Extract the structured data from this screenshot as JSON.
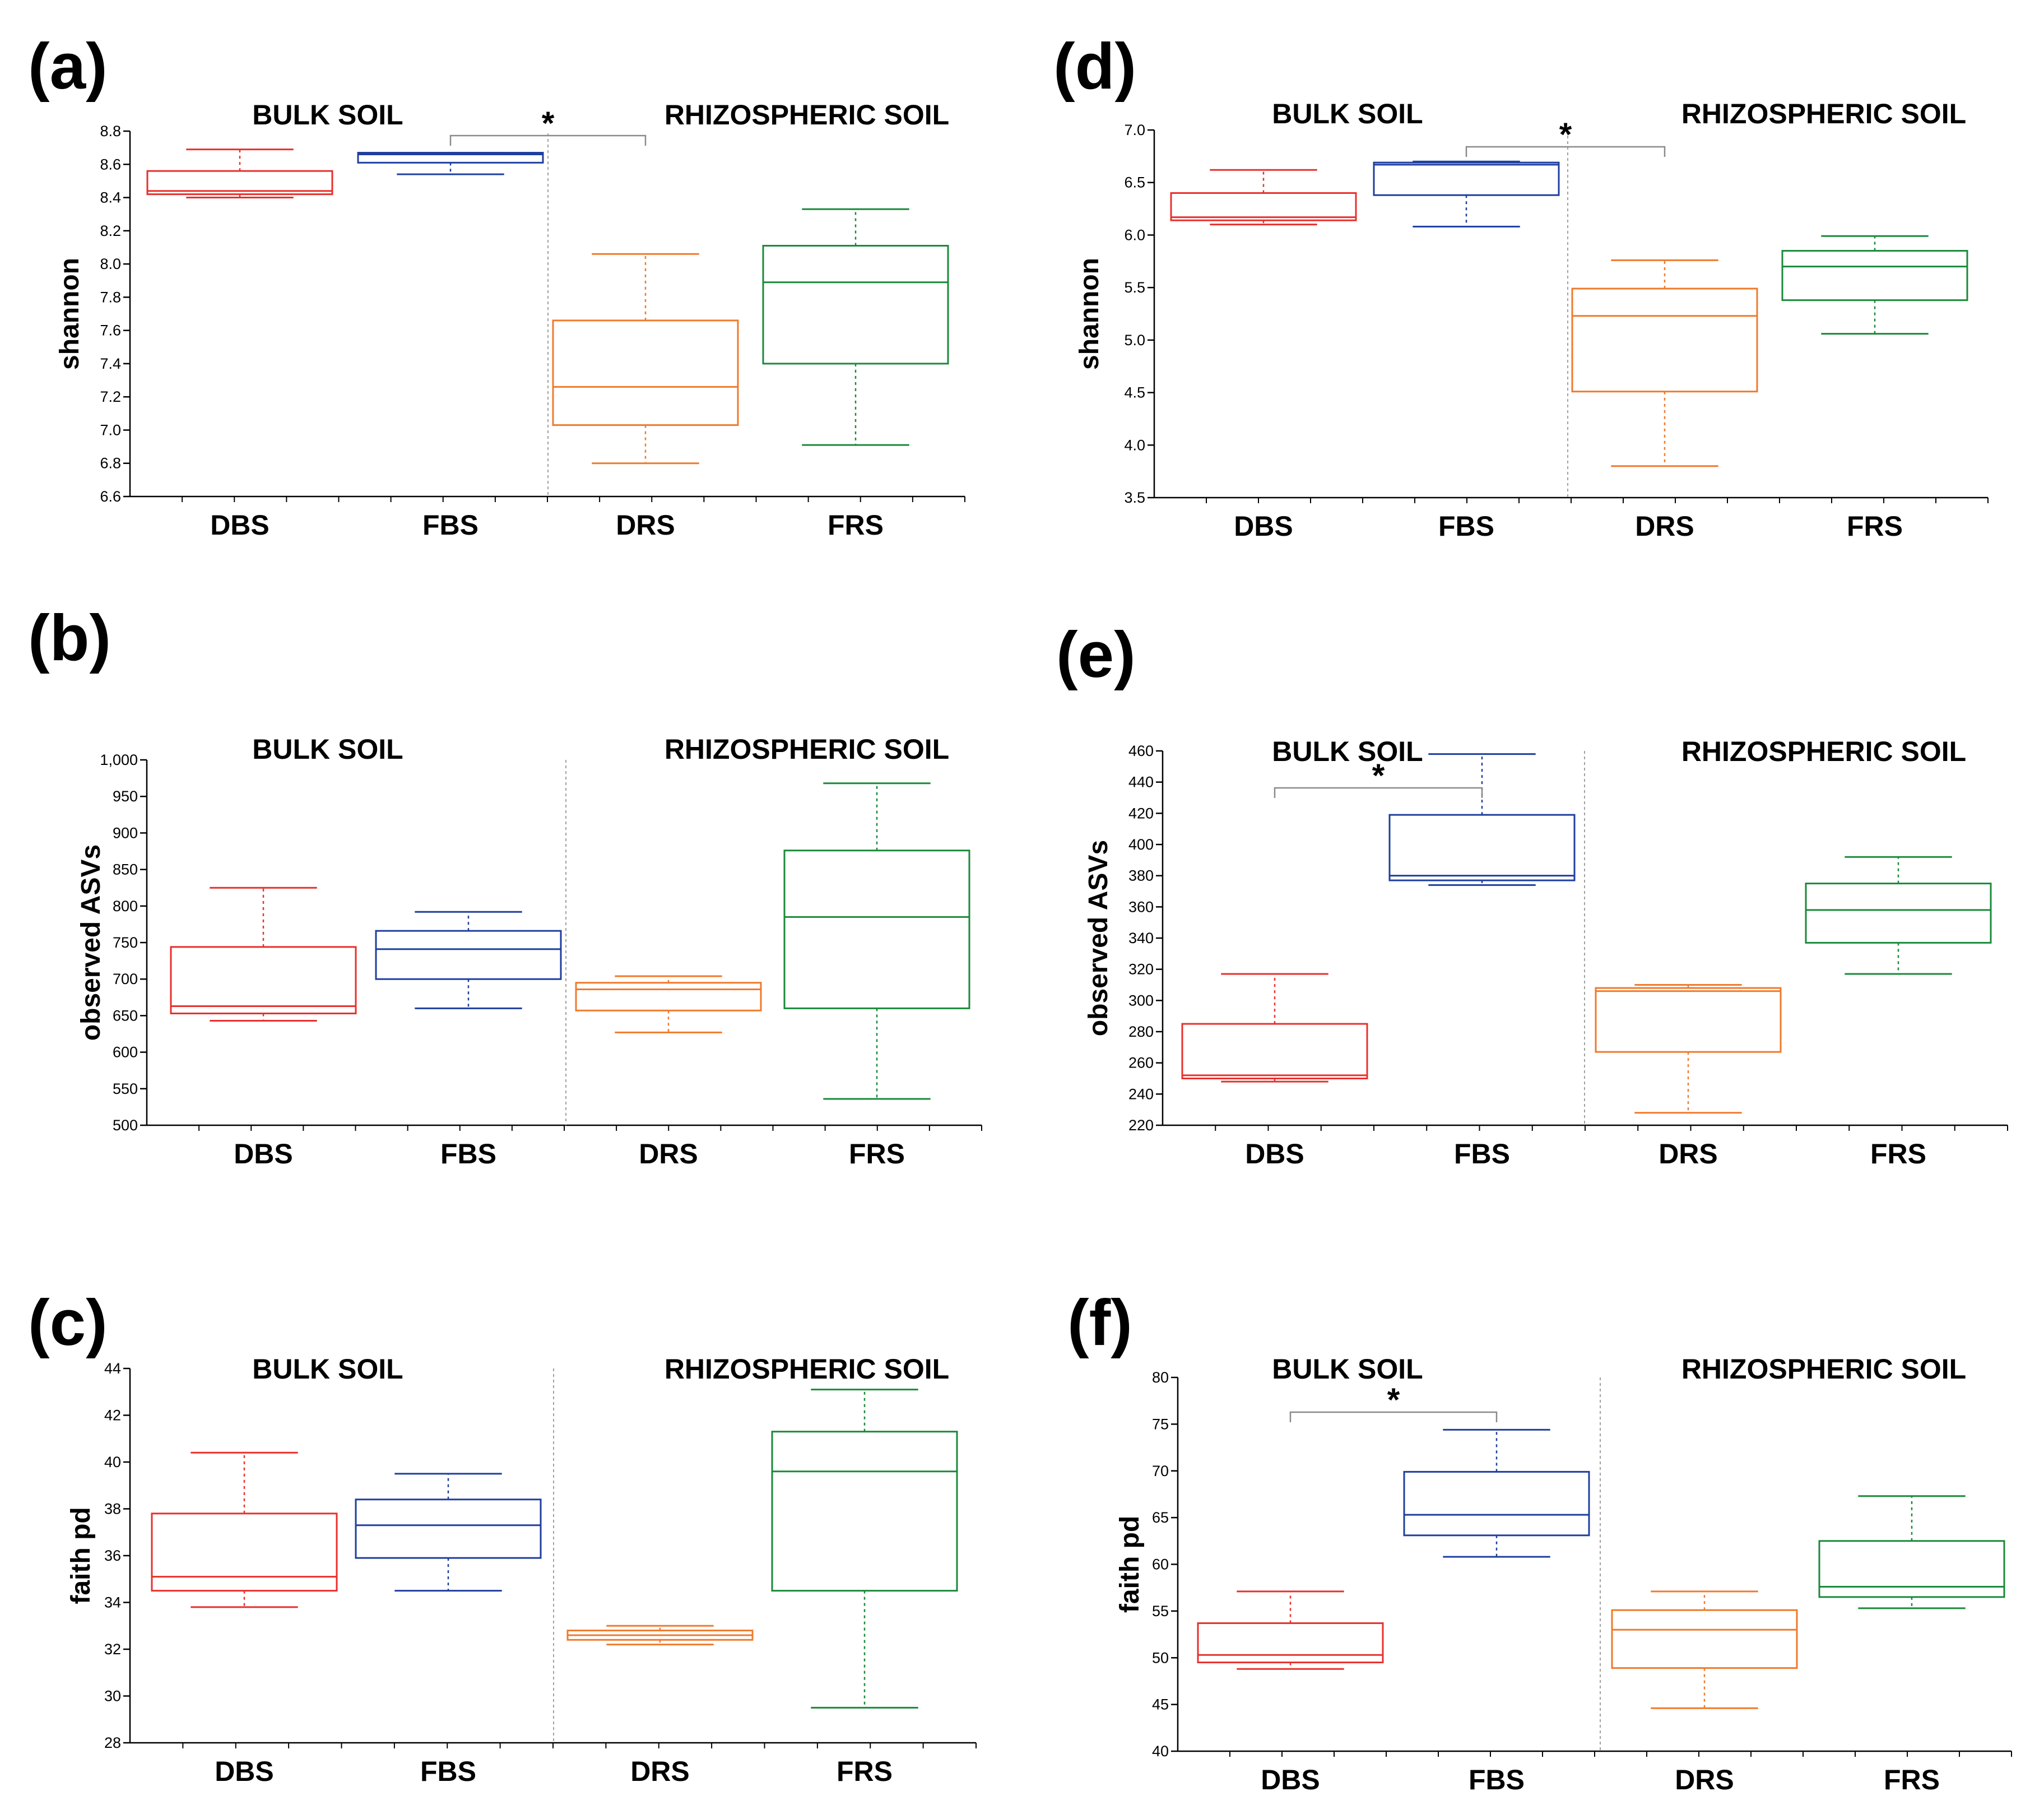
{
  "colors": {
    "DBS": "#e8302c",
    "FBS": "#1f3f9f",
    "DRS": "#f07a2c",
    "FRS": "#1a8a3a",
    "axis": "#000000",
    "bracket": "#8a8a8a",
    "divider": "#a0a0a0"
  },
  "chart_data": [
    {
      "type": "box",
      "panel": "(a)",
      "ylabel": "shannon",
      "ylim": [
        6.6,
        8.8
      ],
      "yticks": [
        6.6,
        6.8,
        7.0,
        7.2,
        7.4,
        7.6,
        7.8,
        8.0,
        8.2,
        8.4,
        8.6,
        8.8
      ],
      "tick_labels": [
        "6.6",
        "6.8",
        "7.0",
        "7.2",
        "7.4",
        "7.6",
        "7.8",
        "8.0",
        "8.2",
        "8.4",
        "8.6",
        "8.8"
      ],
      "group_labels": [
        "BULK SOIL",
        "RHIZOSPHERIC SOIL"
      ],
      "categories": [
        "DBS",
        "FBS",
        "DRS",
        "FRS"
      ],
      "boxes": [
        {
          "name": "DBS",
          "min": 8.4,
          "q1": 8.42,
          "median": 8.44,
          "q3": 8.56,
          "max": 8.69
        },
        {
          "name": "FBS",
          "min": 8.54,
          "q1": 8.61,
          "median": 8.66,
          "q3": 8.67,
          "max": 8.67
        },
        {
          "name": "DRS",
          "min": 6.8,
          "q1": 7.03,
          "median": 7.26,
          "q3": 7.66,
          "max": 8.06
        },
        {
          "name": "FRS",
          "min": 6.91,
          "q1": 7.4,
          "median": 7.89,
          "q3": 8.11,
          "max": 8.33
        }
      ],
      "significance": {
        "from": "FBS",
        "to": "DRS",
        "label": "*"
      }
    },
    {
      "type": "box",
      "panel": "(b)",
      "ylabel": "observed ASVs",
      "ylim": [
        500,
        1000
      ],
      "yticks": [
        500,
        550,
        600,
        650,
        700,
        750,
        800,
        850,
        900,
        950,
        1000
      ],
      "tick_labels": [
        "500",
        "550",
        "600",
        "650",
        "700",
        "750",
        "800",
        "850",
        "900",
        "950",
        "1,000"
      ],
      "group_labels": [
        "BULK SOIL",
        "RHIZOSPHERIC SOIL"
      ],
      "categories": [
        "DBS",
        "FBS",
        "DRS",
        "FRS"
      ],
      "boxes": [
        {
          "name": "DBS",
          "min": 643,
          "q1": 653,
          "median": 663,
          "q3": 744,
          "max": 825
        },
        {
          "name": "FBS",
          "min": 660,
          "q1": 700,
          "median": 741,
          "q3": 766,
          "max": 792
        },
        {
          "name": "DRS",
          "min": 627,
          "q1": 657,
          "median": 686,
          "q3": 695,
          "max": 704
        },
        {
          "name": "FRS",
          "min": 536,
          "q1": 660,
          "median": 785,
          "q3": 876,
          "max": 968
        }
      ],
      "significance": null
    },
    {
      "type": "box",
      "panel": "(c)",
      "ylabel": "faith pd",
      "ylim": [
        28,
        44
      ],
      "yticks": [
        28,
        30,
        32,
        34,
        36,
        38,
        40,
        42,
        44
      ],
      "tick_labels": [
        "28",
        "30",
        "32",
        "34",
        "36",
        "38",
        "40",
        "42",
        "44"
      ],
      "group_labels": [
        "BULK SOIL",
        "RHIZOSPHERIC SOIL"
      ],
      "categories": [
        "DBS",
        "FBS",
        "DRS",
        "FRS"
      ],
      "boxes": [
        {
          "name": "DBS",
          "min": 33.8,
          "q1": 34.5,
          "median": 35.1,
          "q3": 37.8,
          "max": 40.4
        },
        {
          "name": "FBS",
          "min": 34.5,
          "q1": 35.9,
          "median": 37.3,
          "q3": 38.4,
          "max": 39.5
        },
        {
          "name": "DRS",
          "min": 32.2,
          "q1": 32.4,
          "median": 32.6,
          "q3": 32.8,
          "max": 33.0
        },
        {
          "name": "FRS",
          "min": 29.5,
          "q1": 34.5,
          "median": 39.6,
          "q3": 41.3,
          "max": 43.1
        }
      ],
      "significance": null
    },
    {
      "type": "box",
      "panel": "(d)",
      "ylabel": "shannon",
      "ylim": [
        3.5,
        7.0
      ],
      "yticks": [
        3.5,
        4.0,
        4.5,
        5.0,
        5.5,
        6.0,
        6.5,
        7.0
      ],
      "tick_labels": [
        "3.5",
        "4.0",
        "4.5",
        "5.0",
        "5.5",
        "6.0",
        "6.5",
        "7.0"
      ],
      "group_labels": [
        "BULK SOIL",
        "RHIZOSPHERIC SOIL"
      ],
      "categories": [
        "DBS",
        "FBS",
        "DRS",
        "FRS"
      ],
      "boxes": [
        {
          "name": "DBS",
          "min": 6.1,
          "q1": 6.14,
          "median": 6.17,
          "q3": 6.4,
          "max": 6.62
        },
        {
          "name": "FBS",
          "min": 6.08,
          "q1": 6.38,
          "median": 6.67,
          "q3": 6.69,
          "max": 6.7
        },
        {
          "name": "DRS",
          "min": 3.8,
          "q1": 4.51,
          "median": 5.23,
          "q3": 5.49,
          "max": 5.76
        },
        {
          "name": "FRS",
          "min": 5.06,
          "q1": 5.38,
          "median": 5.7,
          "q3": 5.85,
          "max": 5.99
        }
      ],
      "significance": {
        "from": "FBS",
        "to": "DRS",
        "label": "*"
      }
    },
    {
      "type": "box",
      "panel": "(e)",
      "ylabel": "observed ASVs",
      "ylim": [
        220,
        460
      ],
      "yticks": [
        220,
        240,
        260,
        280,
        300,
        320,
        340,
        360,
        380,
        400,
        420,
        440,
        460
      ],
      "tick_labels": [
        "220",
        "240",
        "260",
        "280",
        "300",
        "320",
        "340",
        "360",
        "380",
        "400",
        "420",
        "440",
        "460"
      ],
      "group_labels": [
        "BULK SOIL",
        "RHIZOSPHERIC SOIL"
      ],
      "categories": [
        "DBS",
        "FBS",
        "DRS",
        "FRS"
      ],
      "boxes": [
        {
          "name": "DBS",
          "min": 248,
          "q1": 250,
          "median": 252,
          "q3": 285,
          "max": 317
        },
        {
          "name": "FBS",
          "min": 374,
          "q1": 377,
          "median": 380,
          "q3": 419,
          "max": 458
        },
        {
          "name": "DRS",
          "min": 228,
          "q1": 267,
          "median": 306,
          "q3": 308,
          "max": 310
        },
        {
          "name": "FRS",
          "min": 317,
          "q1": 337,
          "median": 358,
          "q3": 375,
          "max": 392
        }
      ],
      "significance": {
        "from": "DBS",
        "to": "FBS",
        "label": "*"
      }
    },
    {
      "type": "box",
      "panel": "(f)",
      "ylabel": "faith pd",
      "ylim": [
        40,
        80
      ],
      "yticks": [
        40,
        45,
        50,
        55,
        60,
        65,
        70,
        75,
        80
      ],
      "tick_labels": [
        "40",
        "45",
        "50",
        "55",
        "60",
        "65",
        "70",
        "75",
        "80"
      ],
      "group_labels": [
        "BULK SOIL",
        "RHIZOSPHERIC SOIL"
      ],
      "categories": [
        "DBS",
        "FBS",
        "DRS",
        "FRS"
      ],
      "boxes": [
        {
          "name": "DBS",
          "min": 48.8,
          "q1": 49.5,
          "median": 50.3,
          "q3": 53.7,
          "max": 57.1
        },
        {
          "name": "FBS",
          "min": 60.8,
          "q1": 63.1,
          "median": 65.3,
          "q3": 69.9,
          "max": 74.4
        },
        {
          "name": "DRS",
          "min": 44.6,
          "q1": 48.9,
          "median": 53.0,
          "q3": 55.1,
          "max": 57.1
        },
        {
          "name": "FRS",
          "min": 55.3,
          "q1": 56.5,
          "median": 57.6,
          "q3": 62.5,
          "max": 67.3
        }
      ],
      "significance": {
        "from": "DBS",
        "to": "FBS",
        "label": "*"
      }
    }
  ]
}
